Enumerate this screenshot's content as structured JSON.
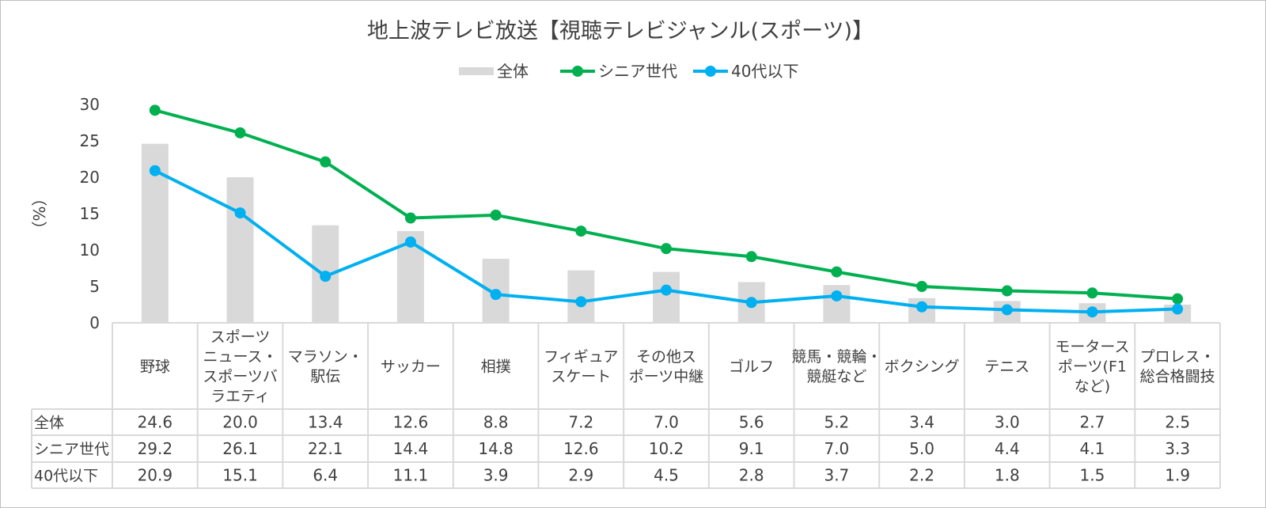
{
  "chart_data": {
    "type": "bar+line",
    "title": "地上波テレビ放送【視聴テレビジャンル(スポーツ)】",
    "ylabel": "（%）",
    "ylim": [
      0,
      30
    ],
    "yticks": [
      "0",
      "5",
      "10",
      "15",
      "20",
      "25",
      "30"
    ],
    "grid": false,
    "legend_placement": "top-center",
    "categories": [
      [
        "野球"
      ],
      [
        "スポーツ",
        "ニュース・",
        "スポーツバ",
        "ラエティ"
      ],
      [
        "マラソン・",
        "駅伝"
      ],
      [
        "サッカー"
      ],
      [
        "相撲"
      ],
      [
        "フィギュア",
        "スケート"
      ],
      [
        "その他ス",
        "ポーツ中継"
      ],
      [
        "ゴルフ"
      ],
      [
        "競馬・競輪・",
        "競艇など"
      ],
      [
        "ボクシング"
      ],
      [
        "テニス"
      ],
      [
        "モータース",
        "ポーツ(F1",
        "など)"
      ],
      [
        "プロレス・",
        "総合格闘技"
      ]
    ],
    "series": [
      {
        "name": "全体",
        "type": "bar",
        "color": "#D9D9D9",
        "values": [
          24.6,
          20.0,
          13.4,
          12.6,
          8.8,
          7.2,
          7.0,
          5.6,
          5.2,
          3.4,
          3.0,
          2.7,
          2.5
        ],
        "labels": [
          "24.6",
          "20.0",
          "13.4",
          "12.6",
          "8.8",
          "7.2",
          "7.0",
          "5.6",
          "5.2",
          "3.4",
          "3.0",
          "2.7",
          "2.5"
        ]
      },
      {
        "name": "シニア世代",
        "type": "line",
        "color": "#00B050",
        "values": [
          29.2,
          26.1,
          22.1,
          14.4,
          14.8,
          12.6,
          10.2,
          9.1,
          7.0,
          5.0,
          4.4,
          4.1,
          3.3
        ],
        "labels": [
          "29.2",
          "26.1",
          "22.1",
          "14.4",
          "14.8",
          "12.6",
          "10.2",
          "9.1",
          "7.0",
          "5.0",
          "4.4",
          "4.1",
          "3.3"
        ]
      },
      {
        "name": "40代以下",
        "type": "line",
        "color": "#00B0F0",
        "values": [
          20.9,
          15.1,
          6.4,
          11.1,
          3.9,
          2.9,
          4.5,
          2.8,
          3.7,
          2.2,
          1.8,
          1.5,
          1.9
        ],
        "labels": [
          "20.9",
          "15.1",
          "6.4",
          "11.1",
          "3.9",
          "2.9",
          "4.5",
          "2.8",
          "3.7",
          "2.2",
          "1.8",
          "1.5",
          "1.9"
        ]
      }
    ]
  }
}
